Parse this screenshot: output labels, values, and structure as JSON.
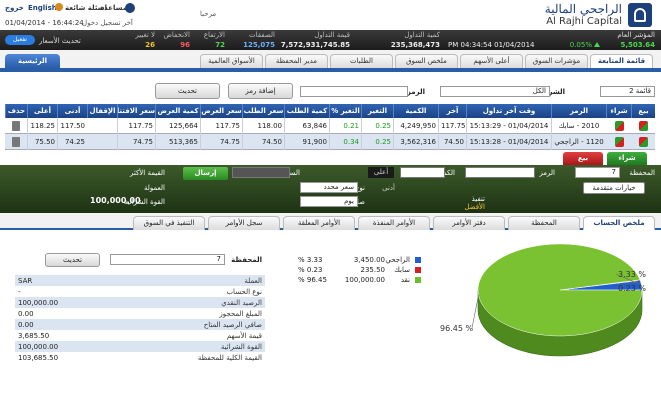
{
  "header": {
    "logo_ar": "الراجحي المالية",
    "logo_en": "Al Rajhi Capital",
    "logout": "خروج",
    "language": "English",
    "faq": "اسئلة شائعة",
    "help": "مساعدة",
    "last_login_label": "آخر تسجيل دخول",
    "last_login": "01/04/2014 - 16:44:24",
    "welcome": "مرحبا"
  },
  "ticker": {
    "index_label": "المؤشر العام",
    "index_value": "5,503.64",
    "index_change": "0.05%",
    "time": "PM 04:34:54 01/04/2014",
    "items": [
      {
        "label": "كمية التداول",
        "value": "235,368,473"
      },
      {
        "label": "قيمة التداول",
        "value": "7,572,931,745.85"
      },
      {
        "label": "الصفقات",
        "value": "125,075"
      },
      {
        "label": "الارتفاع",
        "value": "72"
      },
      {
        "label": "الانخفاض",
        "value": "96"
      },
      {
        "label": "لا تغيير",
        "value": "26"
      }
    ],
    "refresh_label": "تحديث الأسعار",
    "toggle": "تفعيل"
  },
  "tabs": {
    "home": "الرئيسية",
    "items": [
      "قائمة المتابعة",
      "مؤشرات السوق",
      "أعلى الأسهم",
      "ملخص السوق",
      "الطلبات",
      "مدير المحفظة",
      "الأسواق العالمية"
    ]
  },
  "toolbar": {
    "list": "قائمة 2",
    "companies_label": "الشركات",
    "companies": "الكل",
    "symbol_label": "الرمز",
    "add_symbol": "إضافة رمز",
    "refresh": "تحديث"
  },
  "table": {
    "columns": [
      "بيع",
      "شراء",
      "الرمز",
      "وقت آخر تداول",
      "آخر",
      "الكمية",
      "التغير",
      "التغير %",
      "كمية الطلب",
      "سعر الطلب",
      "سعر العرض",
      "كمية العرض",
      "سعر الافتتاح",
      "الإقفال",
      "أدنى",
      "أعلى",
      "حذف"
    ],
    "rows": [
      [
        "2010 - سابك",
        "01/04/2014 - 15:13:29",
        "117.75",
        "4,249,950",
        "0.25",
        "0.21",
        "63,846",
        "118.00",
        "117.75",
        "125,664",
        "117.75",
        null,
        "117.50",
        "118.25"
      ],
      [
        "1120 - الراجحي",
        "01/04/2014 - 15:13:28",
        "74.50",
        "3,562,316",
        "0.25",
        "0.34",
        "91,900",
        "74.50",
        "74.75",
        "513,365",
        "74.75",
        null,
        "74.25",
        "75.50"
      ]
    ]
  },
  "trade_buttons": {
    "buy": "شراء",
    "sell": "بيع"
  },
  "order_entry": {
    "portfolio_label": "المحفظة",
    "portfolio": "7",
    "symbol_label": "الرمز",
    "quantity_label": "الكمية",
    "high_label": "أعلى",
    "low_label": "أدنى",
    "price_label": "السعر",
    "send": "إرسال",
    "order_value_label": "القيمة الأكثر",
    "advanced": "خيارات متقدمة",
    "order_type_label": "نوع الأمر",
    "order_type": "سعر محدد",
    "commission_label": "العمولة",
    "validity_label": "صلاحية الأمر",
    "validity": "يوم",
    "execute_label": "تنفيذ",
    "best_label": "الأفضل",
    "buying_power_label": "القوة الشرائية",
    "buying_power": "100,000.00"
  },
  "bottom_tabs": [
    "ملخص الحساب",
    "المحفظة",
    "دفتر الأوامر",
    "الأوامر المنفذة",
    "الأوامر المعلقة",
    "سجل الأوامر",
    "التنفيذ في السوق"
  ],
  "account": {
    "portfolio_label": "المحفظة",
    "portfolio": "7",
    "refresh": "تحديث",
    "rows": [
      {
        "label": "العملة",
        "value": "SAR"
      },
      {
        "label": "نوع الحساب",
        "value": "-"
      },
      {
        "label": "الرصيد النقدي",
        "value": "100,000.00"
      },
      {
        "label": "المبلغ المحجوز",
        "value": "0.00"
      },
      {
        "label": "صافي الرصيد المتاح",
        "value": "0.00"
      },
      {
        "label": "قيمة الأسهم",
        "value": "3,685.50"
      },
      {
        "label": "القوة الشرائية",
        "value": "100,000.00"
      },
      {
        "label": "القيمة الكلية للمحفظة",
        "value": "103,685.50"
      }
    ]
  },
  "legend": [
    {
      "name": "الراجحي",
      "amount": "3,450.00",
      "percent": "% 3.33",
      "color": "#1f5fd0"
    },
    {
      "name": "سابك",
      "amount": "235.50",
      "percent": "% 0.23",
      "color": "#d62020"
    },
    {
      "name": "نقد",
      "amount": "100,000.00",
      "percent": "% 96.45",
      "color": "#6cbf2a"
    }
  ],
  "portfolio_chart": {
    "type": "pie",
    "values": [
      3.33,
      0.23,
      96.45
    ],
    "value_labels": [
      "3.33 %",
      "0.23 %",
      "96.45 %"
    ],
    "colors": [
      "#1f5fd0",
      "#d62020",
      "#7ac231"
    ]
  }
}
